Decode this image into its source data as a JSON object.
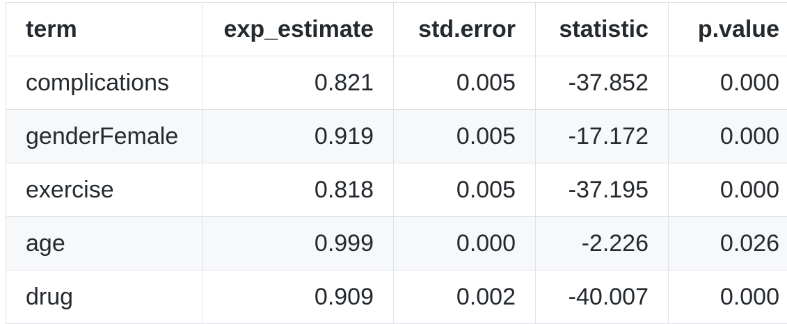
{
  "table": {
    "columns": [
      "term",
      "exp_estimate",
      "std.error",
      "statistic",
      "p.value"
    ],
    "rows": [
      {
        "term": "complications",
        "exp_estimate": "0.821",
        "std_error": "0.005",
        "statistic": "-37.852",
        "p_value": "0.000"
      },
      {
        "term": "genderFemale",
        "exp_estimate": "0.919",
        "std_error": "0.005",
        "statistic": "-17.172",
        "p_value": "0.000"
      },
      {
        "term": "exercise",
        "exp_estimate": "0.818",
        "std_error": "0.005",
        "statistic": "-37.195",
        "p_value": "0.000"
      },
      {
        "term": "age",
        "exp_estimate": "0.999",
        "std_error": "0.000",
        "statistic": "-2.226",
        "p_value": "0.026"
      },
      {
        "term": "drug",
        "exp_estimate": "0.909",
        "std_error": "0.002",
        "statistic": "-40.007",
        "p_value": "0.000"
      }
    ]
  },
  "colors": {
    "text": "#24292e",
    "border": "#dfe2e5",
    "stripe": "#f6f8fa"
  }
}
